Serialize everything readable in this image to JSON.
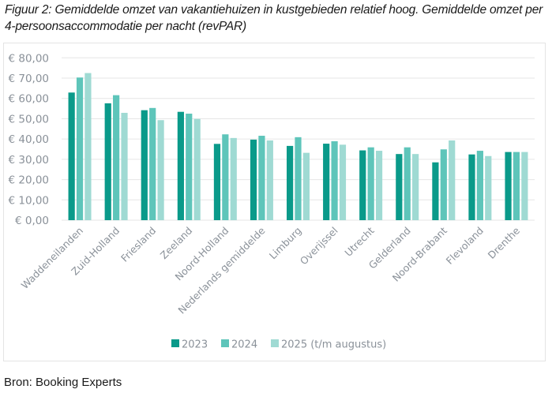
{
  "title": "Figuur 2: Gemiddelde omzet van vakantiehuizen in kustgebieden relatief hoog. Gemiddelde omzet per 4-persoonsaccommodatie per nacht (revPAR)",
  "source": "Bron: Booking Experts",
  "colors": {
    "2023": "#0a9a8a",
    "2024": "#5ec5ba",
    "2025": "#9fdad3",
    "grid": "#e6e6e6",
    "axis_text": "#8a9199"
  },
  "chart_data": {
    "type": "bar",
    "title": "Figuur 2: Gemiddelde omzet van vakantiehuizen in kustgebieden relatief hoog. Gemiddelde omzet per 4-persoonsaccommodatie per nacht (revPAR)",
    "xlabel": "",
    "ylabel": "",
    "ylim": [
      0,
      80
    ],
    "yticks": [
      0,
      10,
      20,
      30,
      40,
      50,
      60,
      70,
      80
    ],
    "ytick_labels": [
      "€ 0,00",
      "€ 10,00",
      "€ 20,00",
      "€ 30,00",
      "€ 40,00",
      "€ 50,00",
      "€ 60,00",
      "€ 70,00",
      "€ 80,00"
    ],
    "grid": true,
    "legend_position": "bottom",
    "categories": [
      "Waddeneilanden",
      "Zuid-Holland",
      "Friesland",
      "Zeeland",
      "Noord-Holland",
      "Nederlands gemiddelde",
      "Limburg",
      "Overijssel",
      "Utrecht",
      "Gelderland",
      "Noord-Brabant",
      "Flevoland",
      "Drenthe"
    ],
    "series": [
      {
        "name": "2023",
        "color_key": "2023",
        "values": [
          62.9,
          57.6,
          54.2,
          53.4,
          37.6,
          39.7,
          36.6,
          37.7,
          34.4,
          32.6,
          28.5,
          32.4,
          33.6
        ]
      },
      {
        "name": "2024",
        "color_key": "2024",
        "values": [
          70.3,
          61.6,
          55.3,
          52.5,
          42.3,
          41.6,
          40.9,
          38.9,
          35.9,
          35.9,
          34.9,
          34.2,
          33.6
        ]
      },
      {
        "name": "2025 (t/m augustus)",
        "color_key": "2025",
        "values": [
          72.5,
          52.9,
          49.3,
          49.9,
          40.5,
          39.3,
          33.2,
          37.2,
          34.2,
          32.6,
          39.3,
          31.6,
          33.6
        ]
      }
    ]
  }
}
